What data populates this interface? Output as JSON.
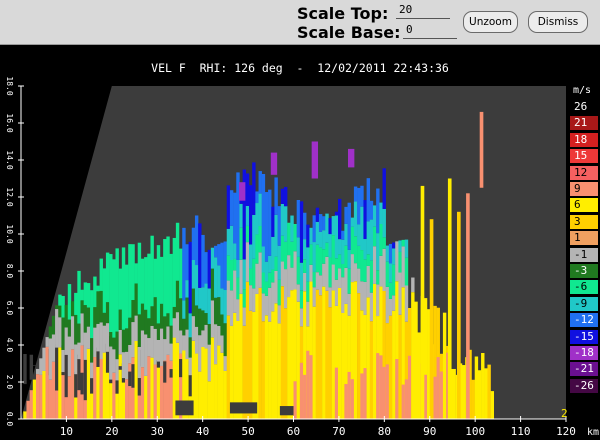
{
  "toolbar": {
    "scale_top_label": "Scale Top:",
    "scale_top_value": "20",
    "scale_base_label": "Scale Base:",
    "scale_base_value": "0",
    "unzoom_label": "Unzoom",
    "dismiss_label": "Dismiss"
  },
  "plot": {
    "title": "VEL F  RHI: 126 deg  -  12/02/2011 22:43:36",
    "x_unit": "km",
    "x_ticks": [
      "10",
      "20",
      "30",
      "40",
      "50",
      "60",
      "70",
      "80",
      "90",
      "100",
      "110",
      "120"
    ],
    "y_ticks": [
      "0.0",
      "2.0",
      "4.0",
      "6.0",
      "8.0",
      "10.0",
      "12.0",
      "14.0",
      "16.0",
      "18.0"
    ],
    "corner_label": "2",
    "background_color": "#3c3c3c"
  },
  "colorbar": {
    "unit": "m/s",
    "entries": [
      {
        "label": "26",
        "color": "#000000",
        "text": "#ffffff"
      },
      {
        "label": "21",
        "color": "#a81818",
        "text": "#ffffff"
      },
      {
        "label": "18",
        "color": "#d42020",
        "text": "#ffffff"
      },
      {
        "label": "15",
        "color": "#ee3838",
        "text": "#ffffff"
      },
      {
        "label": "12",
        "color": "#f56060",
        "text": "#000000"
      },
      {
        "label": "9",
        "color": "#f89070",
        "text": "#000000"
      },
      {
        "label": "6",
        "color": "#ffee00",
        "text": "#000000"
      },
      {
        "label": "3",
        "color": "#ffd000",
        "text": "#000000"
      },
      {
        "label": "1",
        "color": "#f0a060",
        "text": "#000000"
      },
      {
        "label": "-1",
        "color": "#b4b4b4",
        "text": "#000000"
      },
      {
        "label": "-3",
        "color": "#207a20",
        "text": "#ffffff"
      },
      {
        "label": "-6",
        "color": "#10e890",
        "text": "#000000"
      },
      {
        "label": "-9",
        "color": "#20c8c8",
        "text": "#000000"
      },
      {
        "label": "-12",
        "color": "#2070f0",
        "text": "#ffffff"
      },
      {
        "label": "-15",
        "color": "#1010e0",
        "text": "#ffffff"
      },
      {
        "label": "-18",
        "color": "#a030c8",
        "text": "#ffffff"
      },
      {
        "label": "-21",
        "color": "#6a1090",
        "text": "#ffffff"
      },
      {
        "label": "-26",
        "color": "#440844",
        "text": "#ffffff"
      }
    ]
  }
}
